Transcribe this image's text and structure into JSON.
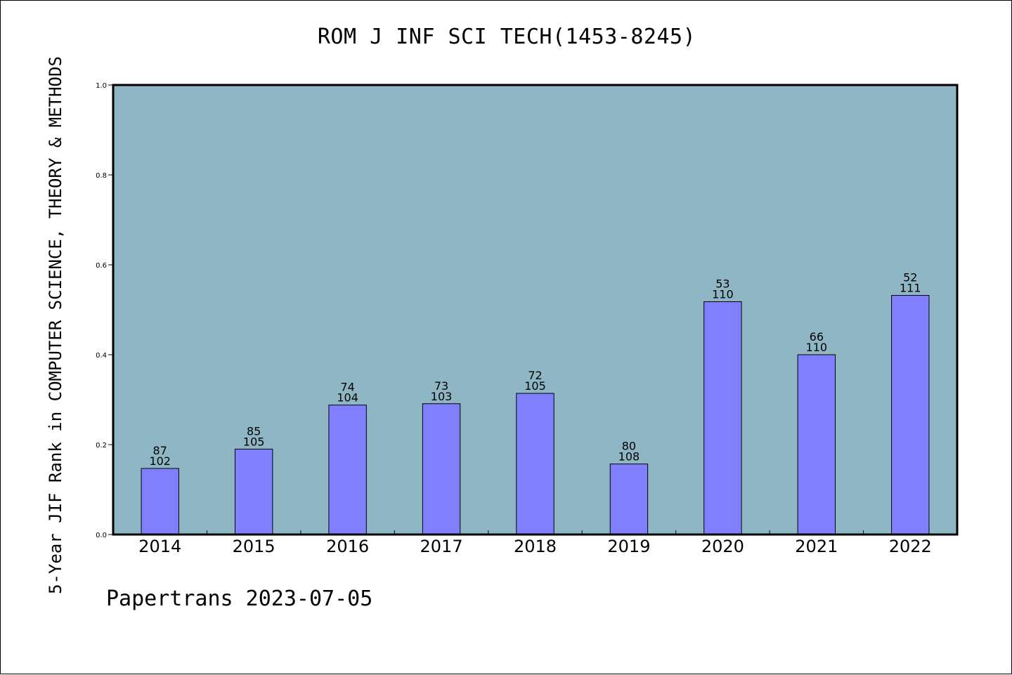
{
  "title": "ROM J INF SCI TECH(1453-8245)",
  "footer": "Papertrans 2023-07-05",
  "colors": {
    "plot_background": "#8fb6c5",
    "bar_fill": "#8080ff",
    "bar_stroke": "#000000",
    "axis": "#000000"
  },
  "chart_data": {
    "type": "bar",
    "title": "ROM J INF SCI TECH(1453-8245)",
    "xlabel": "",
    "ylabel": "5-Year JIF Rank in COMPUTER SCIENCE, THEORY & METHODS",
    "ylim": [
      0,
      1.0
    ],
    "yticks": [
      0.0,
      0.2,
      0.4,
      0.6,
      0.8,
      1.0
    ],
    "ytick_labels": [
      "0.0",
      "0.2",
      "0.4",
      "0.6",
      "0.8",
      "1.0"
    ],
    "grid": false,
    "categories": [
      "2014",
      "2015",
      "2016",
      "2017",
      "2018",
      "2019",
      "2020",
      "2021",
      "2022"
    ],
    "values": [
      0.147,
      0.19,
      0.288,
      0.291,
      0.314,
      0.157,
      0.518,
      0.4,
      0.532
    ],
    "rank_labels": [
      "87",
      "85",
      "74",
      "73",
      "72",
      "80",
      "53",
      "66",
      "52"
    ],
    "total_labels": [
      "102",
      "105",
      "104",
      "103",
      "105",
      "108",
      "110",
      "110",
      "111"
    ]
  }
}
